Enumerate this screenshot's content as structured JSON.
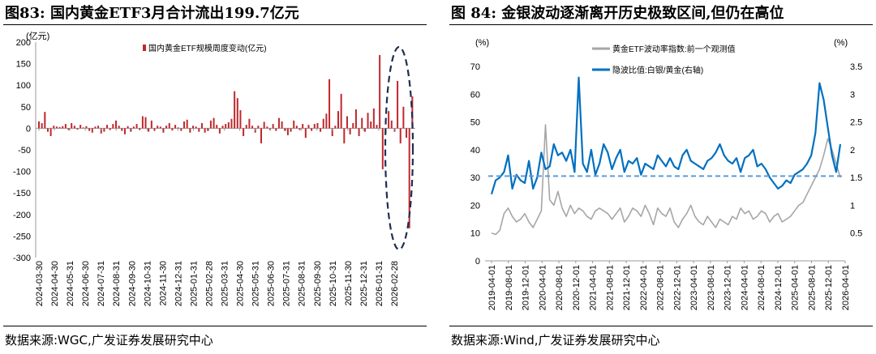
{
  "left": {
    "title": "图83:  国内黄金ETF3月合计流出199.7亿元",
    "source": "数据来源:WGC,广发证券发展研究中心",
    "chart_data": {
      "type": "bar",
      "unit_label": "(亿元)",
      "legend": "国内黄金ETF规模周度变动(亿元)",
      "ylim": [
        -300,
        200
      ],
      "yticks": [
        200,
        150,
        100,
        50,
        0,
        -50,
        -100,
        -150,
        -200,
        -250,
        -300
      ],
      "x_tick_labels": [
        "2024-03-30",
        "2024-04-30",
        "2024-05-31",
        "2024-06-30",
        "2024-07-31",
        "2024-08-31",
        "2024-09-30",
        "2024-10-31",
        "2024-11-30",
        "2024-12-31",
        "2025-01-31",
        "2025-02-28",
        "2025-03-31",
        "2025-04-30",
        "2025-05-31",
        "2025-06-30",
        "2025-07-31",
        "2025-08-31",
        "2025-09-30",
        "2025-10-31",
        "2025-11-30",
        "2025-12-31",
        "2026-01-31",
        "2026-02-28"
      ],
      "color": "#c0282d",
      "values": [
        16,
        12,
        38,
        -8,
        -18,
        6,
        4,
        3,
        5,
        10,
        -4,
        12,
        6,
        -3,
        8,
        2,
        5,
        -6,
        -10,
        4,
        6,
        -12,
        -8,
        8,
        -4,
        10,
        18,
        6,
        -6,
        -14,
        5,
        -8,
        4,
        10,
        -4,
        28,
        26,
        -8,
        18,
        -6,
        6,
        4,
        -10,
        6,
        12,
        -5,
        8,
        2,
        -6,
        16,
        20,
        -10,
        6,
        4,
        -8,
        12,
        -10,
        -6,
        18,
        24,
        8,
        -12,
        6,
        10,
        14,
        22,
        86,
        70,
        42,
        -18,
        8,
        22,
        6,
        -10,
        6,
        -35,
        15,
        4,
        -4,
        10,
        -6,
        24,
        16,
        -6,
        -16,
        -8,
        18,
        6,
        -4,
        10,
        -22,
        8,
        -6,
        10,
        12,
        -8,
        22,
        34,
        114,
        -18,
        6,
        40,
        80,
        -35,
        28,
        -14,
        12,
        44,
        -18,
        24,
        -8,
        36,
        16,
        46,
        8,
        170,
        -95,
        -12,
        40,
        18,
        -8,
        110,
        -35,
        50,
        -22,
        -232,
        74
      ]
    }
  },
  "right": {
    "title": "图 84:  金银波动逐渐离开历史极致区间,但仍在高位",
    "source": "数据来源:Wind,广发证券发展研究中心",
    "chart_data": {
      "type": "line",
      "left_unit": "(%)",
      "right_unit": "(%)",
      "ylim_left": [
        0,
        70
      ],
      "ylim_right": [
        0,
        3.5
      ],
      "yticks_left": [
        70,
        60,
        50,
        40,
        30,
        20,
        10,
        0
      ],
      "yticks_right": [
        3.5,
        3,
        2.5,
        2,
        1.5,
        1,
        0.5
      ],
      "x_tick_labels": [
        "2019-04-01",
        "2019-08-01",
        "2019-12-01",
        "2020-04-01",
        "2020-08-01",
        "2020-12-01",
        "2021-04-01",
        "2021-08-01",
        "2021-12-01",
        "2022-04-01",
        "2022-08-01",
        "2022-12-01",
        "2023-04-01",
        "2023-08-01",
        "2023-12-01",
        "2024-04-01",
        "2024-08-01",
        "2024-12-01",
        "2025-04-01",
        "2025-08-01",
        "2025-12-01",
        "2026-04-01"
      ],
      "series": [
        {
          "name": "黄金ETF波动率指数:前一个观测值",
          "axis": "left",
          "color": "#a6a6a6",
          "values": [
            10,
            9.5,
            11,
            17,
            19,
            16,
            14,
            15,
            17,
            14,
            12,
            15,
            18,
            49,
            22,
            20,
            25,
            19,
            16,
            20,
            17,
            19,
            18,
            16,
            15,
            18,
            19,
            18,
            17,
            15,
            17,
            19,
            14,
            16,
            19,
            18,
            16,
            20,
            17,
            13,
            19,
            17,
            16,
            19,
            14,
            12,
            15,
            17,
            20,
            16,
            14,
            13,
            16,
            14,
            12,
            15,
            14,
            13,
            16,
            15,
            19,
            17,
            18,
            15,
            16,
            18,
            17,
            14,
            16,
            17,
            14,
            15,
            16,
            18,
            20,
            21,
            24,
            27,
            30,
            33,
            38,
            44,
            40,
            35,
            30
          ]
        },
        {
          "name": "隐波比值:白银/黄金(右轴)",
          "axis": "right",
          "color": "#0070c0",
          "values": [
            1.2,
            1.45,
            1.5,
            1.6,
            1.9,
            1.3,
            1.55,
            1.45,
            1.4,
            1.8,
            1.3,
            1.5,
            1.95,
            1.65,
            1.7,
            2.1,
            1.9,
            1.95,
            1.8,
            2.0,
            1.6,
            3.3,
            1.75,
            1.6,
            2.0,
            1.55,
            1.75,
            2.1,
            1.95,
            1.65,
            1.85,
            2.0,
            1.6,
            1.8,
            1.75,
            1.85,
            1.55,
            1.75,
            1.7,
            1.65,
            1.9,
            1.8,
            1.7,
            1.85,
            1.7,
            1.65,
            1.9,
            2.0,
            1.8,
            1.75,
            1.7,
            1.65,
            1.8,
            1.85,
            1.95,
            2.1,
            1.9,
            1.8,
            1.75,
            1.85,
            1.6,
            1.85,
            1.9,
            2.0,
            1.7,
            1.75,
            1.65,
            1.5,
            1.4,
            1.3,
            1.35,
            1.45,
            1.4,
            1.55,
            1.6,
            1.65,
            1.75,
            1.9,
            2.3,
            3.2,
            2.9,
            2.4,
            1.9,
            1.6,
            2.1
          ]
        }
      ],
      "reference_line": {
        "axis": "left",
        "value": 30.5,
        "style": "dashed",
        "color": "#5b9bd5"
      }
    }
  }
}
